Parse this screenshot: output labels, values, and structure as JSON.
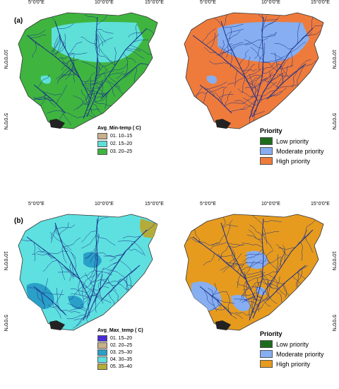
{
  "panels": [
    {
      "label": "(a)",
      "ticks_top": [
        "5°0'0\"E",
        "10°0'0\"E",
        "15°0'0\"E",
        "5°0'0\"E",
        "10°0'0\"E",
        "15°0'0\"E"
      ],
      "ticks_side": [
        "10°0'0\"N",
        "5°0'0\"N"
      ],
      "left_legend": {
        "title": "Avg_Min-temp ( C)",
        "items": [
          {
            "label": "01. 10–15",
            "color": "#c8b08a"
          },
          {
            "label": "02. 15–20",
            "color": "#5ee0d8"
          },
          {
            "label": "03. 20–25",
            "color": "#3fb53f"
          }
        ]
      },
      "right_legend": {
        "title": "Priority",
        "items": [
          {
            "label": "Low priority",
            "color": "#1e6b1e"
          },
          {
            "label": "Moderate priority",
            "color": "#86aef0"
          },
          {
            "label": "High priority",
            "color": "#ee7b3c"
          }
        ]
      }
    },
    {
      "label": "(b)",
      "ticks_top": [
        "5°0'0\"E",
        "10°0'0\"E",
        "15°0'0\"E",
        "5°0'0\"E",
        "10°0'0\"E",
        "15°0'0\"E"
      ],
      "ticks_side": [
        "10°0'0\"N",
        "5°0'0\"N"
      ],
      "left_legend": {
        "title": "Avg_Max_temp ( C)",
        "items": [
          {
            "label": "01. 15–20",
            "color": "#4b2bd8"
          },
          {
            "label": "02. 20–25",
            "color": "#c8b08a"
          },
          {
            "label": "03. 25–30",
            "color": "#2aa0c8"
          },
          {
            "label": "04. 30–35",
            "color": "#5ee0e0"
          },
          {
            "label": "05. 35–40",
            "color": "#b3ab3a"
          }
        ]
      },
      "right_legend": {
        "title": "Priority",
        "items": [
          {
            "label": "Low priority",
            "color": "#1e6b1e"
          },
          {
            "label": "Moderate priority",
            "color": "#86aef0"
          },
          {
            "label": "High priority",
            "color": "#e69b1e"
          }
        ]
      }
    }
  ],
  "map_colors": {
    "a_left_base": "#3fb53f",
    "a_left_zone": "#5ee0d8",
    "a_right_base": "#ee7b3c",
    "a_right_zone": "#86aef0",
    "b_left_base": "#5ee0e0",
    "b_left_zone": "#2aa0c8",
    "b_left_corner": "#b3ab3a",
    "b_right_base": "#e69b1e",
    "b_right_zone": "#86aef0",
    "river": "#1a2f8a",
    "delta": "#222222"
  }
}
